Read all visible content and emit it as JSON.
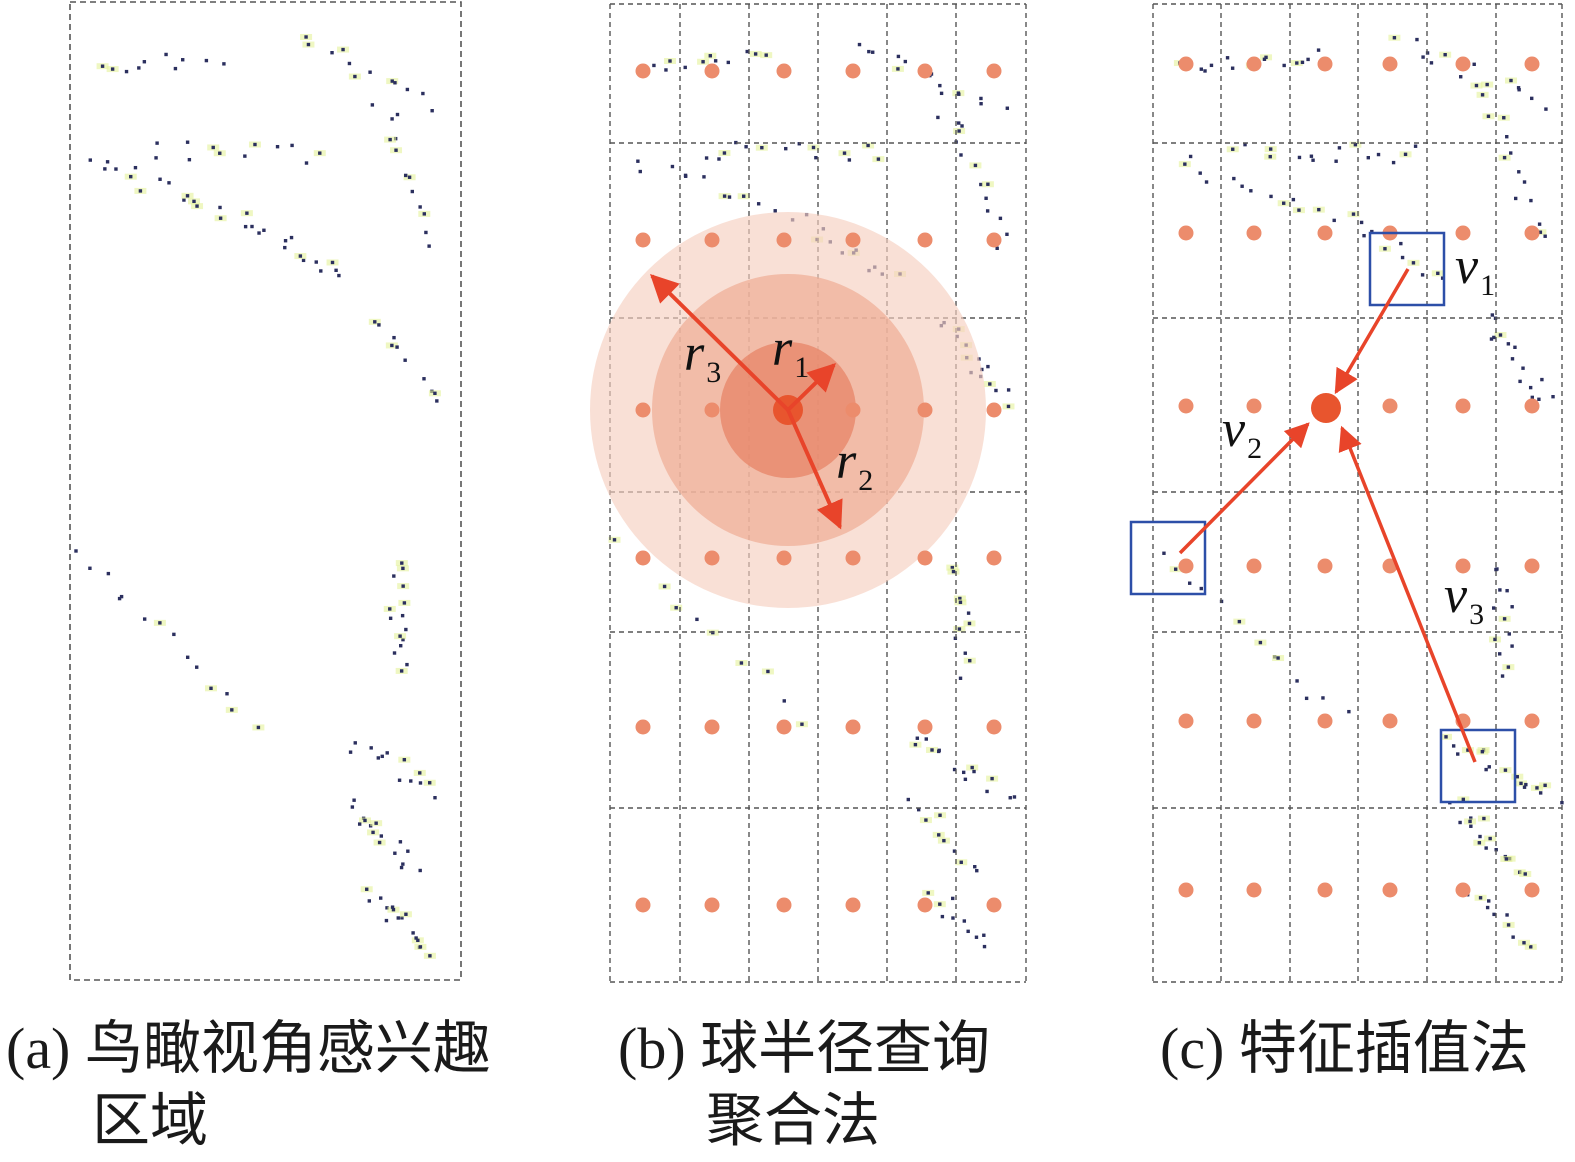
{
  "panels": [
    {
      "id": "a",
      "caption_line1": "(a) 鸟瞰视角感兴趣",
      "caption_line2": "区域"
    },
    {
      "id": "b",
      "caption_line1": "(b) 球半径查询",
      "caption_line2": "聚合法"
    },
    {
      "id": "c",
      "caption_line1": "(c) 特征插值法",
      "caption_line2": ""
    }
  ],
  "radius_labels": [
    {
      "base": "r",
      "sub": "1"
    },
    {
      "base": "r",
      "sub": "2"
    },
    {
      "base": "r",
      "sub": "3"
    }
  ],
  "vector_labels": [
    {
      "base": "v",
      "sub": "1"
    },
    {
      "base": "v",
      "sub": "2"
    },
    {
      "base": "v",
      "sub": "3"
    }
  ],
  "colors": {
    "grid": "#555555",
    "sample_point": "#ec8c6c",
    "query_point": "#e8552e",
    "arrow": "#e8442a",
    "ring_outer": "#f8d8cc",
    "ring_middle": "#f2b7a0",
    "ring_inner": "#e98a6a",
    "box": "#2d4fa8",
    "lidar_dot": "#2b2f5e",
    "lidar_glow": "#e4f29a"
  }
}
